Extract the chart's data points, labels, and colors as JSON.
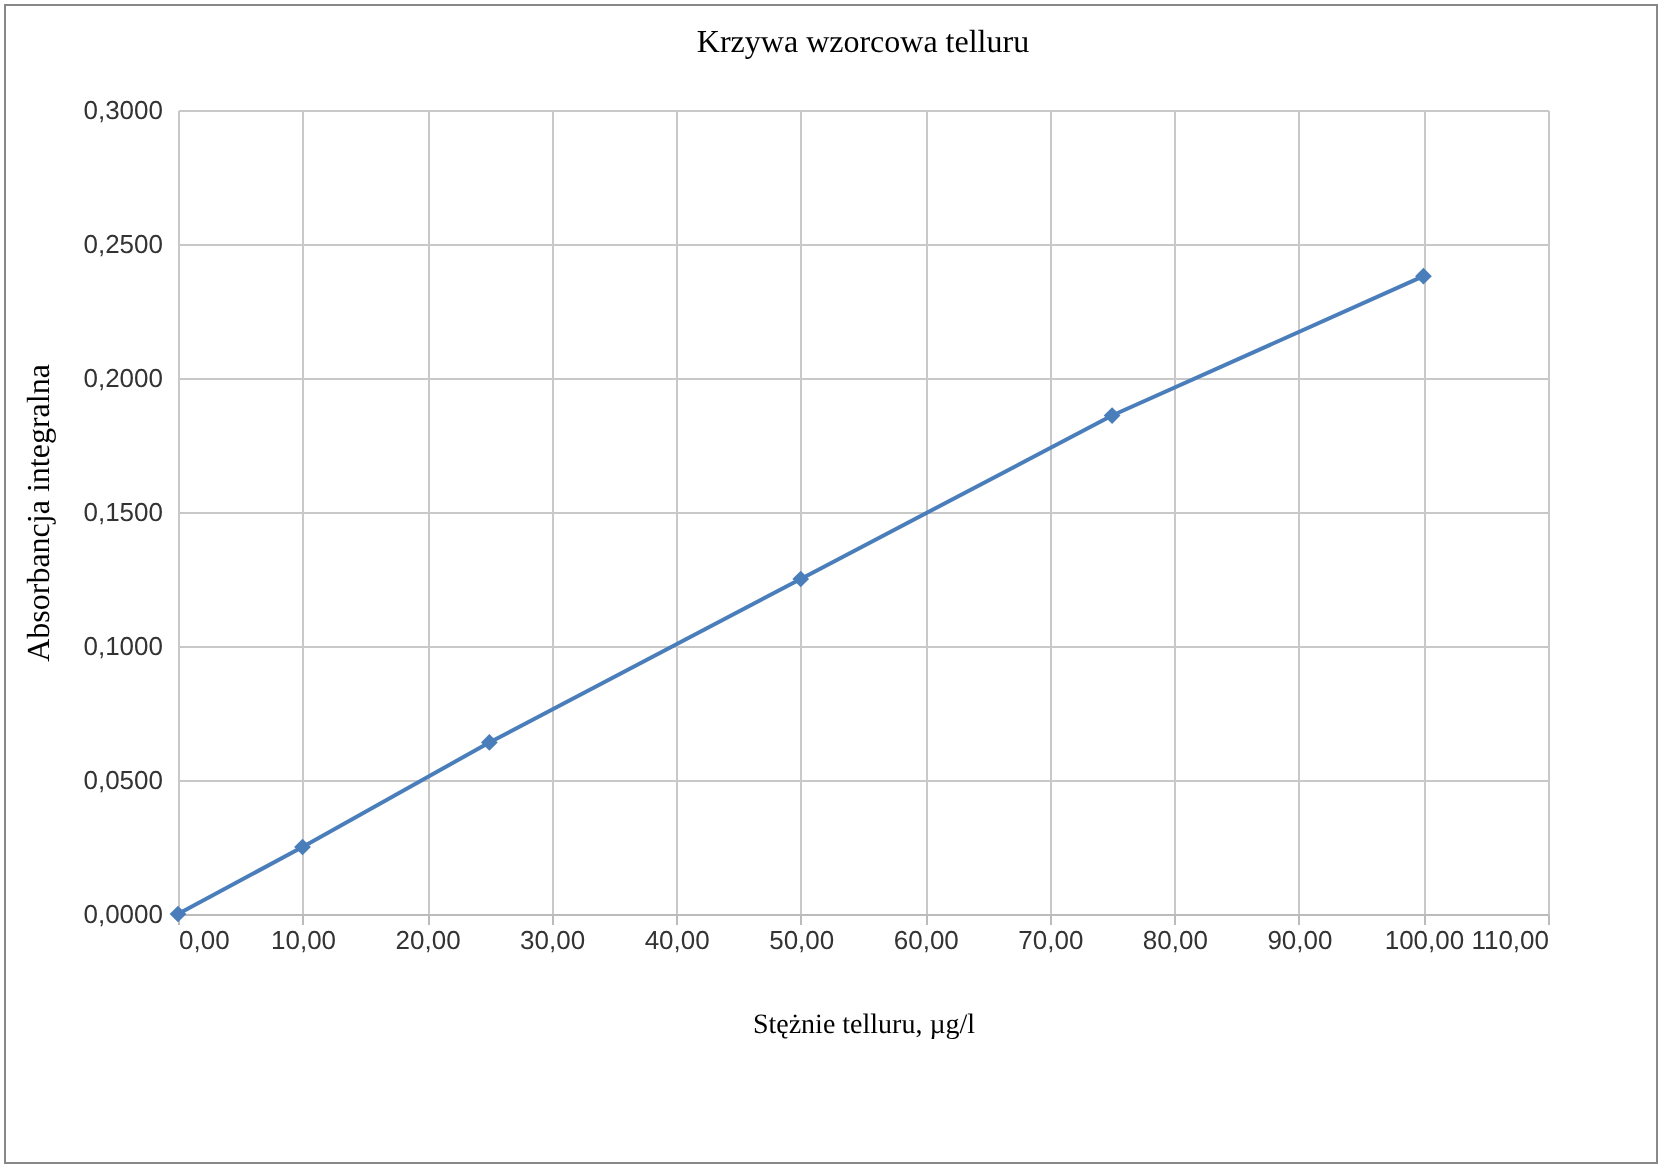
{
  "chart_data": {
    "type": "line",
    "title": "Krzywa  wzorcowa  telluru",
    "xlabel": "Stężnie telluru, µg/l",
    "ylabel": "Absorbancja   integralna",
    "x": [
      0,
      10,
      25,
      50,
      75,
      100
    ],
    "series": [
      {
        "color": "#4a7ebb",
        "values": [
          0,
          0.025,
          0.064,
          0.125,
          0.186,
          0.238
        ]
      }
    ],
    "xlim": [
      0,
      110
    ],
    "xticks": [
      {
        "value": 0,
        "label": "0,00"
      },
      {
        "value": 10,
        "label": "10,00"
      },
      {
        "value": 20,
        "label": "20,00"
      },
      {
        "value": 30,
        "label": "30,00"
      },
      {
        "value": 40,
        "label": "40,00"
      },
      {
        "value": 50,
        "label": "50,00"
      },
      {
        "value": 60,
        "label": "60,00"
      },
      {
        "value": 70,
        "label": "70,00"
      },
      {
        "value": 80,
        "label": "80,00"
      },
      {
        "value": 90,
        "label": "90,00"
      },
      {
        "value": 100,
        "label": "100,00"
      },
      {
        "value": 110,
        "label": "110,00"
      }
    ],
    "ylim": [
      0,
      0.3
    ],
    "yticks": [
      {
        "value": 0,
        "label": "0,0000"
      },
      {
        "value": 0.05,
        "label": "0,0500"
      },
      {
        "value": 0.1,
        "label": "0,1000"
      },
      {
        "value": 0.15,
        "label": "0,1500"
      },
      {
        "value": 0.2,
        "label": "0,2000"
      },
      {
        "value": 0.25,
        "label": "0,2500"
      },
      {
        "value": 0.3,
        "label": "0,3000"
      }
    ],
    "grid": true,
    "marker": "diamond",
    "line_style": "solid"
  }
}
